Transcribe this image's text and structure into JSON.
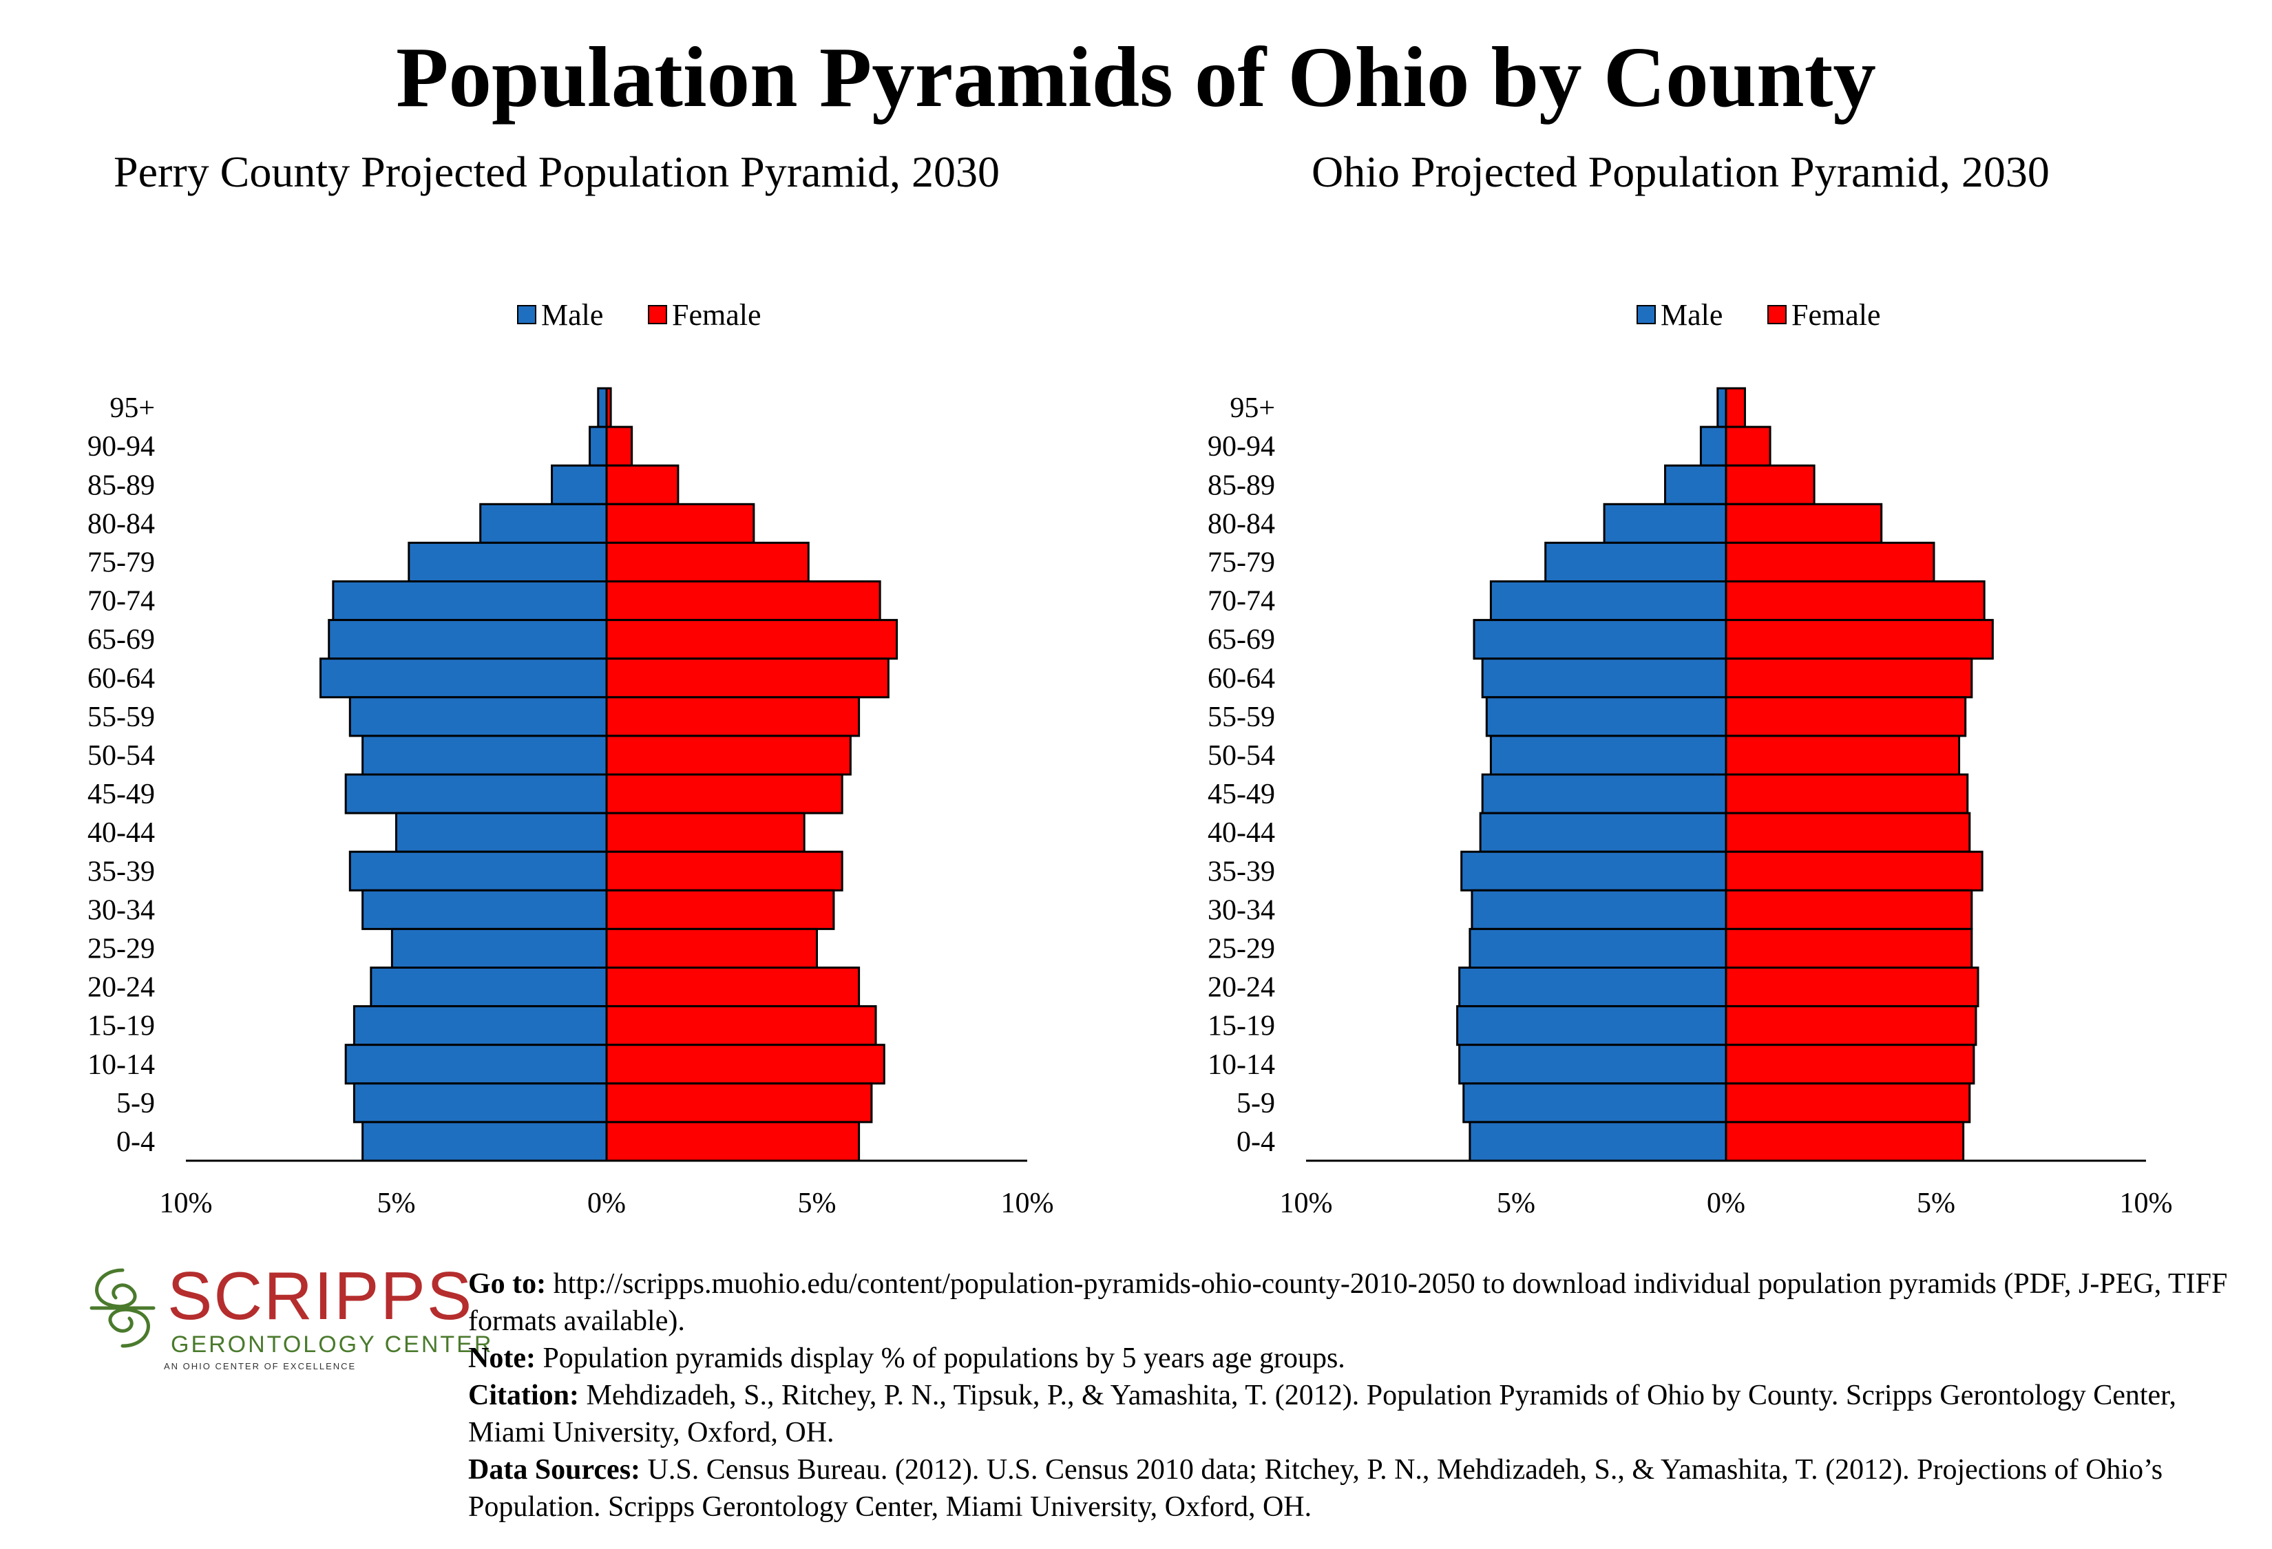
{
  "main_title": "Population Pyramids of Ohio by County",
  "colors": {
    "male": "#1f6fc1",
    "female": "#fe0000"
  },
  "legend": {
    "male_label": "Male",
    "female_label": "Female"
  },
  "chart_data": [
    {
      "type": "bar",
      "orientation": "horizontal-pyramid",
      "title": "Perry County Projected Population Pyramid, 2030",
      "categories": [
        "95+",
        "90-94",
        "85-89",
        "80-84",
        "75-79",
        "70-74",
        "65-69",
        "60-64",
        "55-59",
        "50-54",
        "45-49",
        "40-44",
        "35-39",
        "30-34",
        "25-29",
        "20-24",
        "15-19",
        "10-14",
        "5-9",
        "0-4"
      ],
      "series": [
        {
          "name": "Male",
          "values": [
            0.2,
            0.4,
            1.3,
            3.0,
            4.7,
            6.5,
            6.6,
            6.8,
            6.1,
            5.8,
            6.2,
            5.0,
            6.1,
            5.8,
            5.1,
            5.6,
            6.0,
            6.2,
            6.0,
            5.8
          ]
        },
        {
          "name": "Female",
          "values": [
            0.1,
            0.6,
            1.7,
            3.5,
            4.8,
            6.5,
            6.9,
            6.7,
            6.0,
            5.8,
            5.6,
            4.7,
            5.6,
            5.4,
            5.0,
            6.0,
            6.4,
            6.6,
            6.3,
            6.0
          ]
        }
      ],
      "xlim": [
        -10,
        10
      ],
      "tick_labels": [
        "10%",
        "5%",
        "0%",
        "5%",
        "10%"
      ],
      "legend_position": "top-center"
    },
    {
      "type": "bar",
      "orientation": "horizontal-pyramid",
      "title": "Ohio Projected Population Pyramid, 2030",
      "categories": [
        "95+",
        "90-94",
        "85-89",
        "80-84",
        "75-79",
        "70-74",
        "65-69",
        "60-64",
        "55-59",
        "50-54",
        "45-49",
        "40-44",
        "35-39",
        "30-34",
        "25-29",
        "20-24",
        "15-19",
        "10-14",
        "5-9",
        "0-4"
      ],
      "series": [
        {
          "name": "Male",
          "values": [
            0.2,
            0.6,
            1.45,
            2.9,
            4.3,
            5.6,
            6.0,
            5.8,
            5.7,
            5.6,
            5.8,
            5.85,
            6.3,
            6.05,
            6.1,
            6.35,
            6.4,
            6.35,
            6.25,
            6.1
          ]
        },
        {
          "name": "Female",
          "values": [
            0.45,
            1.05,
            2.1,
            3.7,
            4.95,
            6.15,
            6.35,
            5.85,
            5.7,
            5.55,
            5.75,
            5.8,
            6.1,
            5.85,
            5.85,
            6.0,
            5.95,
            5.9,
            5.8,
            5.65
          ]
        }
      ],
      "xlim": [
        -10,
        10
      ],
      "tick_labels": [
        "10%",
        "5%",
        "0%",
        "5%",
        "10%"
      ],
      "legend_position": "top-center"
    }
  ],
  "logo": {
    "word": "SCRIPPS",
    "subtitle": "GERONTOLOGY CENTER",
    "tagline": "AN OHIO CENTER OF EXCELLENCE"
  },
  "footer": {
    "goto_label": "Go to:",
    "goto_text": " http://scripps.muohio.edu/content/population-pyramids-ohio-county-2010-2050 to download individual population pyramids (PDF, J-PEG, TIFF formats available).",
    "note_label": "Note:",
    "note_text": " Population pyramids display % of populations by 5 years age groups.",
    "citation_label": "Citation:",
    "citation_text": " Mehdizadeh, S., Ritchey, P. N., Tipsuk, P., & Yamashita, T. (2012). Population Pyramids of Ohio by County. Scripps Gerontology Center, Miami University, Oxford, OH.",
    "sources_label": "Data Sources:",
    "sources_text": " U.S. Census Bureau. (2012). U.S. Census 2010 data; Ritchey, P. N., Mehdizadeh, S., & Yamashita, T. (2012). Projections of Ohio’s Population. Scripps Gerontology Center, Miami University, Oxford, OH."
  }
}
